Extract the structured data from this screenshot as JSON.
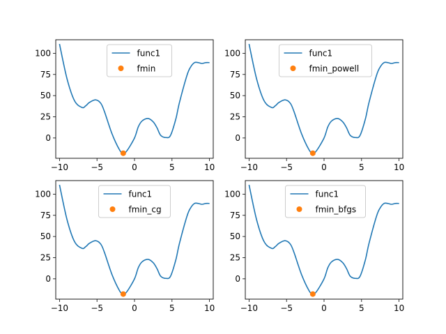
{
  "chart_data": [
    {
      "type": "line",
      "panel": "top-left",
      "x": [
        -10,
        -9,
        -8,
        -7,
        -6.5,
        -6,
        -5.2,
        -4.5,
        -4,
        -3,
        -2,
        -1.5,
        -1,
        0,
        0.5,
        1,
        1.8,
        2.5,
        3,
        3.5,
        4.2,
        4.8,
        5.5,
        6,
        7,
        7.5,
        8,
        8.5,
        9,
        9.5,
        10
      ],
      "series": [
        {
          "name": "func1",
          "type": "line",
          "color": "#1f77b4",
          "y": [
            111,
            70,
            44,
            36,
            38,
            42,
            45,
            41,
            31,
            5,
            -14,
            -18,
            -15,
            0,
            13,
            20,
            23,
            19,
            12,
            3,
            0.5,
            3,
            22,
            42,
            74,
            84,
            89,
            89,
            88,
            89,
            89
          ]
        },
        {
          "name": "fmin",
          "type": "scatter",
          "color": "#ff7f0e",
          "x": [
            -1.5
          ],
          "y": [
            -18
          ]
        }
      ],
      "xlim": [
        -10.5,
        10.5
      ],
      "ylim": [
        -24,
        116
      ],
      "xticks": [
        -10,
        -5,
        0,
        5,
        10
      ],
      "yticks": [
        0,
        25,
        50,
        75,
        100
      ],
      "legend_position": "upper-center"
    },
    {
      "type": "line",
      "panel": "top-right",
      "x": [
        -10,
        -9,
        -8,
        -7,
        -6.5,
        -6,
        -5.2,
        -4.5,
        -4,
        -3,
        -2,
        -1.5,
        -1,
        0,
        0.5,
        1,
        1.8,
        2.5,
        3,
        3.5,
        4.2,
        4.8,
        5.5,
        6,
        7,
        7.5,
        8,
        8.5,
        9,
        9.5,
        10
      ],
      "series": [
        {
          "name": "func1",
          "type": "line",
          "color": "#1f77b4",
          "y": [
            111,
            70,
            44,
            36,
            38,
            42,
            45,
            41,
            31,
            5,
            -14,
            -18,
            -15,
            0,
            13,
            20,
            23,
            19,
            12,
            3,
            0.5,
            3,
            22,
            42,
            74,
            84,
            89,
            89,
            88,
            89,
            89
          ]
        },
        {
          "name": "fmin_powell",
          "type": "scatter",
          "color": "#ff7f0e",
          "x": [
            -1.5
          ],
          "y": [
            -18
          ]
        }
      ],
      "xlim": [
        -10.5,
        10.5
      ],
      "ylim": [
        -24,
        116
      ],
      "xticks": [
        -10,
        -5,
        0,
        5,
        10
      ],
      "yticks": [
        0,
        25,
        50,
        75,
        100
      ],
      "legend_position": "upper-center"
    },
    {
      "type": "line",
      "panel": "bottom-left",
      "x": [
        -10,
        -9,
        -8,
        -7,
        -6.5,
        -6,
        -5.2,
        -4.5,
        -4,
        -3,
        -2,
        -1.5,
        -1,
        0,
        0.5,
        1,
        1.8,
        2.5,
        3,
        3.5,
        4.2,
        4.8,
        5.5,
        6,
        7,
        7.5,
        8,
        8.5,
        9,
        9.5,
        10
      ],
      "series": [
        {
          "name": "func1",
          "type": "line",
          "color": "#1f77b4",
          "y": [
            111,
            70,
            44,
            36,
            38,
            42,
            45,
            41,
            31,
            5,
            -14,
            -18,
            -15,
            0,
            13,
            20,
            23,
            19,
            12,
            3,
            0.5,
            3,
            22,
            42,
            74,
            84,
            89,
            89,
            88,
            89,
            89
          ]
        },
        {
          "name": "fmin_cg",
          "type": "scatter",
          "color": "#ff7f0e",
          "x": [
            -1.5
          ],
          "y": [
            -18
          ]
        }
      ],
      "xlim": [
        -10.5,
        10.5
      ],
      "ylim": [
        -24,
        116
      ],
      "xticks": [
        -10,
        -5,
        0,
        5,
        10
      ],
      "yticks": [
        0,
        25,
        50,
        75,
        100
      ],
      "legend_position": "upper-center"
    },
    {
      "type": "line",
      "panel": "bottom-right",
      "x": [
        -10,
        -9,
        -8,
        -7,
        -6.5,
        -6,
        -5.2,
        -4.5,
        -4,
        -3,
        -2,
        -1.5,
        -1,
        0,
        0.5,
        1,
        1.8,
        2.5,
        3,
        3.5,
        4.2,
        4.8,
        5.5,
        6,
        7,
        7.5,
        8,
        8.5,
        9,
        9.5,
        10
      ],
      "series": [
        {
          "name": "func1",
          "type": "line",
          "color": "#1f77b4",
          "y": [
            111,
            70,
            44,
            36,
            38,
            42,
            45,
            41,
            31,
            5,
            -14,
            -18,
            -15,
            0,
            13,
            20,
            23,
            19,
            12,
            3,
            0.5,
            3,
            22,
            42,
            74,
            84,
            89,
            89,
            88,
            89,
            89
          ]
        },
        {
          "name": "fmin_bfgs",
          "type": "scatter",
          "color": "#ff7f0e",
          "x": [
            -1.5
          ],
          "y": [
            -18
          ]
        }
      ],
      "xlim": [
        -10.5,
        10.5
      ],
      "ylim": [
        -24,
        116
      ],
      "xticks": [
        -10,
        -5,
        0,
        5,
        10
      ],
      "yticks": [
        0,
        25,
        50,
        75,
        100
      ],
      "legend_position": "upper-center"
    }
  ]
}
